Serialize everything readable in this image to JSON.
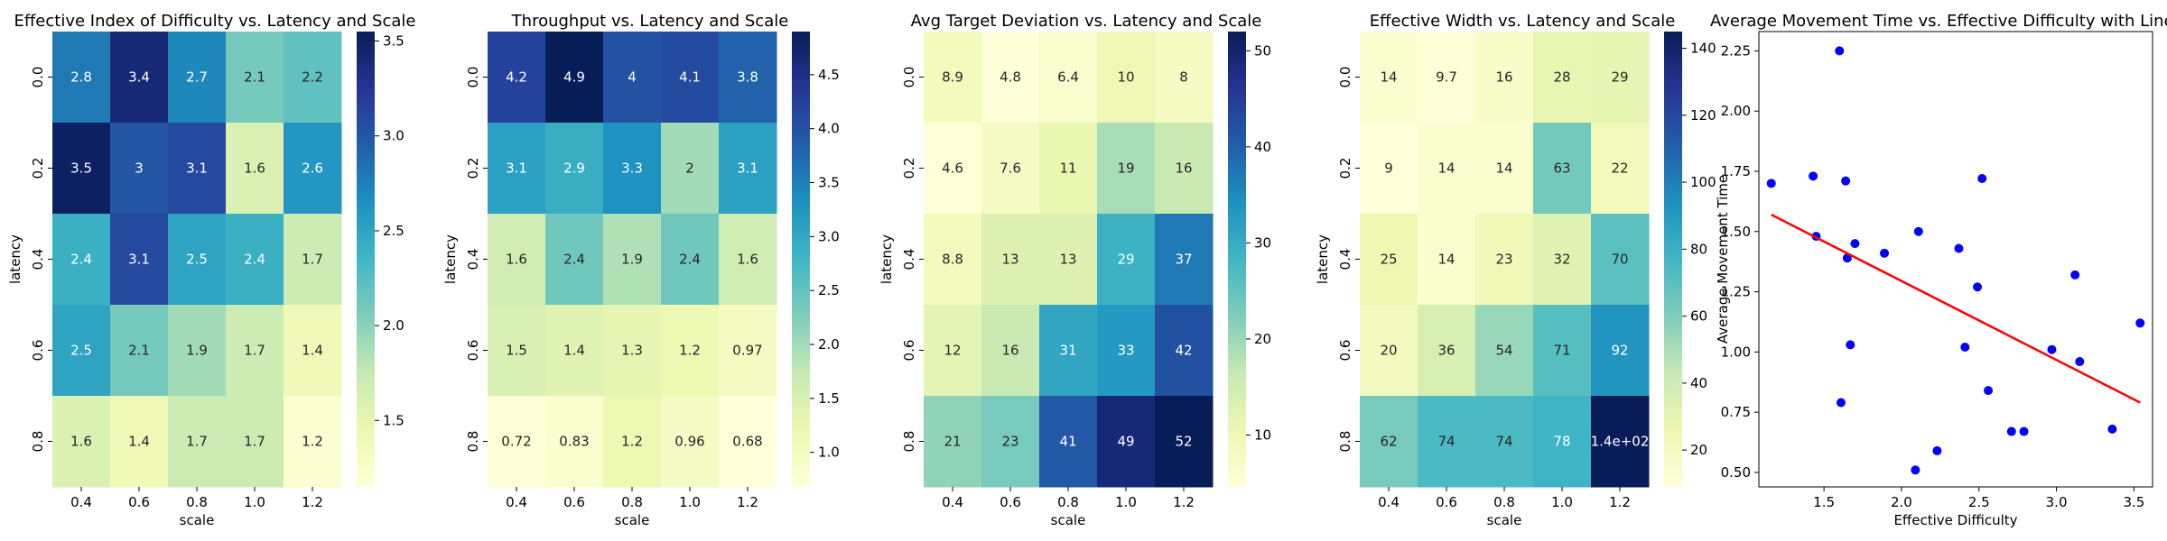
{
  "chart_data": [
    {
      "type": "heatmap",
      "title": "Effective Index of Difficulty vs. Latency and Scale",
      "xlabel": "scale",
      "ylabel": "latency",
      "x": [
        "0.4",
        "0.6",
        "0.8",
        "1.0",
        "1.2"
      ],
      "y": [
        "0.0",
        "0.2",
        "0.4",
        "0.6",
        "0.8"
      ],
      "values": [
        [
          2.8,
          3.4,
          2.7,
          2.1,
          2.2
        ],
        [
          3.5,
          3.0,
          3.1,
          1.6,
          2.6
        ],
        [
          2.4,
          3.1,
          2.5,
          2.4,
          1.7
        ],
        [
          2.5,
          2.1,
          1.9,
          1.7,
          1.4
        ],
        [
          1.6,
          1.4,
          1.7,
          1.7,
          1.2
        ]
      ],
      "labels": [
        [
          "2.8",
          "3.4",
          "2.7",
          "2.1",
          "2.2"
        ],
        [
          "3.5",
          "3",
          "3.1",
          "1.6",
          "2.6"
        ],
        [
          "2.4",
          "3.1",
          "2.5",
          "2.4",
          "1.7"
        ],
        [
          "2.5",
          "2.1",
          "1.9",
          "1.7",
          "1.4"
        ],
        [
          "1.6",
          "1.4",
          "1.7",
          "1.7",
          "1.2"
        ]
      ],
      "colormap": "YlGnBu",
      "vmin": 1.15,
      "vmax": 3.55,
      "colorbar_ticks": [
        1.5,
        2.0,
        2.5,
        3.0,
        3.5
      ],
      "colorbar_tick_labels": [
        "1.5",
        "2.0",
        "2.5",
        "3.0",
        "3.5"
      ]
    },
    {
      "type": "heatmap",
      "title": "Throughput vs. Latency and Scale",
      "xlabel": "scale",
      "ylabel": "latency",
      "x": [
        "0.4",
        "0.6",
        "0.8",
        "1.0",
        "1.2"
      ],
      "y": [
        "0.0",
        "0.2",
        "0.4",
        "0.6",
        "0.8"
      ],
      "values": [
        [
          4.2,
          4.9,
          4.0,
          4.1,
          3.8
        ],
        [
          3.1,
          2.9,
          3.3,
          2.0,
          3.1
        ],
        [
          1.6,
          2.4,
          1.9,
          2.4,
          1.6
        ],
        [
          1.5,
          1.4,
          1.3,
          1.2,
          0.97
        ],
        [
          0.72,
          0.83,
          1.2,
          0.96,
          0.68
        ]
      ],
      "labels": [
        [
          "4.2",
          "4.9",
          "4",
          "4.1",
          "3.8"
        ],
        [
          "3.1",
          "2.9",
          "3.3",
          "2",
          "3.1"
        ],
        [
          "1.6",
          "2.4",
          "1.9",
          "2.4",
          "1.6"
        ],
        [
          "1.5",
          "1.4",
          "1.3",
          "1.2",
          "0.97"
        ],
        [
          "0.72",
          "0.83",
          "1.2",
          "0.96",
          "0.68"
        ]
      ],
      "colormap": "YlGnBu",
      "vmin": 0.68,
      "vmax": 4.9,
      "colorbar_ticks": [
        1.0,
        1.5,
        2.0,
        2.5,
        3.0,
        3.5,
        4.0,
        4.5
      ],
      "colorbar_tick_labels": [
        "1.0",
        "1.5",
        "2.0",
        "2.5",
        "3.0",
        "3.5",
        "4.0",
        "4.5"
      ]
    },
    {
      "type": "heatmap",
      "title": "Avg Target Deviation vs. Latency and Scale",
      "xlabel": "scale",
      "ylabel": "latency",
      "x": [
        "0.4",
        "0.6",
        "0.8",
        "1.0",
        "1.2"
      ],
      "y": [
        "0.0",
        "0.2",
        "0.4",
        "0.6",
        "0.8"
      ],
      "values": [
        [
          8.9,
          4.8,
          6.4,
          10,
          8
        ],
        [
          4.6,
          7.6,
          11,
          19,
          16
        ],
        [
          8.8,
          13,
          13,
          29,
          37
        ],
        [
          12,
          16,
          31,
          33,
          42
        ],
        [
          21,
          23,
          41,
          49,
          52
        ]
      ],
      "labels": [
        [
          "8.9",
          "4.8",
          "6.4",
          "10",
          "8"
        ],
        [
          "4.6",
          "7.6",
          "11",
          "19",
          "16"
        ],
        [
          "8.8",
          "13",
          "13",
          "29",
          "37"
        ],
        [
          "12",
          "16",
          "31",
          "33",
          "42"
        ],
        [
          "21",
          "23",
          "41",
          "49",
          "52"
        ]
      ],
      "colormap": "YlGnBu",
      "vmin": 4.6,
      "vmax": 52,
      "colorbar_ticks": [
        10,
        20,
        30,
        40,
        50
      ],
      "colorbar_tick_labels": [
        "10",
        "20",
        "30",
        "40",
        "50"
      ]
    },
    {
      "type": "heatmap",
      "title": "Effective Width vs. Latency and Scale",
      "xlabel": "scale",
      "ylabel": "latency",
      "x": [
        "0.4",
        "0.6",
        "0.8",
        "1.0",
        "1.2"
      ],
      "y": [
        "0.0",
        "0.2",
        "0.4",
        "0.6",
        "0.8"
      ],
      "values": [
        [
          14,
          9.7,
          16,
          28,
          29
        ],
        [
          9,
          14,
          14,
          63,
          22
        ],
        [
          25,
          14,
          23,
          32,
          70
        ],
        [
          20,
          36,
          54,
          71,
          92
        ],
        [
          62,
          74,
          74,
          78,
          145
        ]
      ],
      "labels": [
        [
          "14",
          "9.7",
          "16",
          "28",
          "29"
        ],
        [
          "9",
          "14",
          "14",
          "63",
          "22"
        ],
        [
          "25",
          "14",
          "23",
          "32",
          "70"
        ],
        [
          "20",
          "36",
          "54",
          "71",
          "92"
        ],
        [
          "62",
          "74",
          "74",
          "78",
          "1.4e+02"
        ]
      ],
      "colormap": "YlGnBu",
      "vmin": 9,
      "vmax": 145,
      "colorbar_ticks": [
        20,
        40,
        60,
        80,
        100,
        120,
        140
      ],
      "colorbar_tick_labels": [
        "20",
        "40",
        "60",
        "80",
        "100",
        "120",
        "140"
      ]
    },
    {
      "type": "scatter",
      "title": "Average Movement Time vs. Effective Difficulty with Linear R",
      "xlabel": "Effective Difficulty",
      "ylabel": "Average Movement Time",
      "xlim": [
        1.08,
        3.62
      ],
      "ylim": [
        0.44,
        2.33
      ],
      "xticks": [
        1.5,
        2.0,
        2.5,
        3.0,
        3.5
      ],
      "xtick_labels": [
        "1.5",
        "2.0",
        "2.5",
        "3.0",
        "3.5"
      ],
      "yticks": [
        0.5,
        0.75,
        1.0,
        1.25,
        1.5,
        1.75,
        2.0,
        2.25
      ],
      "ytick_labels": [
        "0.50",
        "0.75",
        "1.00",
        "1.25",
        "1.50",
        "1.75",
        "2.00",
        "2.25"
      ],
      "point_color": "#0000ff",
      "line_color": "#ff0000",
      "points": [
        {
          "x": 1.16,
          "y": 1.7
        },
        {
          "x": 1.43,
          "y": 1.73
        },
        {
          "x": 1.45,
          "y": 1.48
        },
        {
          "x": 1.6,
          "y": 2.25
        },
        {
          "x": 1.61,
          "y": 0.79
        },
        {
          "x": 1.64,
          "y": 1.71
        },
        {
          "x": 1.65,
          "y": 1.39
        },
        {
          "x": 1.67,
          "y": 1.03
        },
        {
          "x": 1.7,
          "y": 1.45
        },
        {
          "x": 1.89,
          "y": 1.41
        },
        {
          "x": 2.09,
          "y": 0.51
        },
        {
          "x": 2.11,
          "y": 1.5
        },
        {
          "x": 2.23,
          "y": 0.59
        },
        {
          "x": 2.37,
          "y": 1.43
        },
        {
          "x": 2.41,
          "y": 1.02
        },
        {
          "x": 2.49,
          "y": 1.27
        },
        {
          "x": 2.52,
          "y": 1.72
        },
        {
          "x": 2.56,
          "y": 0.84
        },
        {
          "x": 2.71,
          "y": 0.67
        },
        {
          "x": 2.79,
          "y": 0.67
        },
        {
          "x": 2.97,
          "y": 1.01
        },
        {
          "x": 3.12,
          "y": 1.32
        },
        {
          "x": 3.15,
          "y": 0.96
        },
        {
          "x": 3.36,
          "y": 0.68
        },
        {
          "x": 3.54,
          "y": 1.12
        }
      ],
      "regression_line": {
        "x": [
          1.16,
          3.54
        ],
        "y": [
          1.57,
          0.79
        ]
      }
    }
  ]
}
